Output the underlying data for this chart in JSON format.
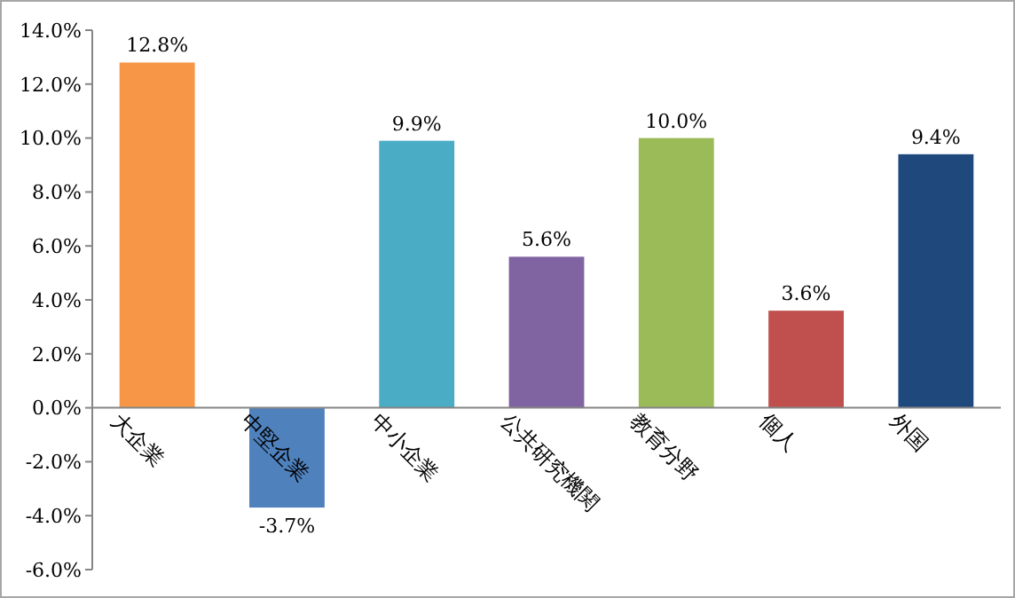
{
  "chart_data": {
    "type": "bar",
    "categories": [
      "大企業",
      "中堅企業",
      "中小企業",
      "公共研究機関",
      "教育分野",
      "個人",
      "外国"
    ],
    "values": [
      12.8,
      -3.7,
      9.9,
      5.6,
      10.0,
      3.6,
      9.4
    ],
    "colors": [
      "#f79646",
      "#4f81bd",
      "#4bacc6",
      "#8064a2",
      "#9bbb59",
      "#c0504d",
      "#1f497d"
    ],
    "value_labels": [
      "12.8%",
      "-3.7%",
      "9.9%",
      "5.6%",
      "10.0%",
      "3.6%",
      "9.4%"
    ],
    "ylim": [
      -6,
      14
    ],
    "yticks": [
      {
        "value": -6,
        "label": "-6.0%"
      },
      {
        "value": -4,
        "label": "-4.0%"
      },
      {
        "value": -2,
        "label": "-2.0%"
      },
      {
        "value": 0,
        "label": "0.0%"
      },
      {
        "value": 2,
        "label": "2.0%"
      },
      {
        "value": 4,
        "label": "4.0%"
      },
      {
        "value": 6,
        "label": "6.0%"
      },
      {
        "value": 8,
        "label": "8.0%"
      },
      {
        "value": 10,
        "label": "10.0%"
      },
      {
        "value": 12,
        "label": "12.0%"
      },
      {
        "value": 14,
        "label": "14.0%"
      }
    ],
    "grid": false
  }
}
